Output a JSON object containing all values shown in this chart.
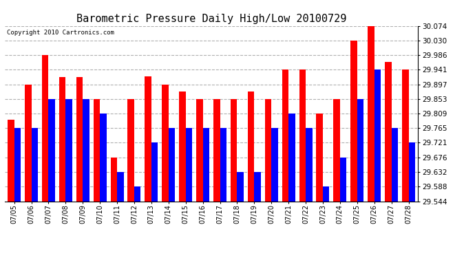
{
  "title": "Barometric Pressure Daily High/Low 20100729",
  "copyright": "Copyright 2010 Cartronics.com",
  "dates": [
    "07/05",
    "07/06",
    "07/07",
    "07/08",
    "07/09",
    "07/10",
    "07/11",
    "07/12",
    "07/13",
    "07/14",
    "07/15",
    "07/16",
    "07/17",
    "07/18",
    "07/19",
    "07/20",
    "07/21",
    "07/22",
    "07/23",
    "07/24",
    "07/25",
    "07/26",
    "07/27",
    "07/28"
  ],
  "highs": [
    29.79,
    29.897,
    29.986,
    29.919,
    29.919,
    29.853,
    29.676,
    29.853,
    29.921,
    29.897,
    29.875,
    29.853,
    29.853,
    29.853,
    29.875,
    29.853,
    29.941,
    29.941,
    29.809,
    29.853,
    30.03,
    30.074,
    29.964,
    29.941
  ],
  "lows": [
    29.765,
    29.765,
    29.853,
    29.853,
    29.853,
    29.809,
    29.632,
    29.588,
    29.721,
    29.765,
    29.765,
    29.765,
    29.765,
    29.632,
    29.632,
    29.765,
    29.809,
    29.765,
    29.588,
    29.676,
    29.853,
    29.941,
    29.765,
    29.721
  ],
  "ymin": 29.544,
  "ymax": 30.074,
  "yticks": [
    29.544,
    29.588,
    29.632,
    29.676,
    29.721,
    29.765,
    29.809,
    29.853,
    29.897,
    29.941,
    29.986,
    30.03,
    30.074
  ],
  "high_color": "#ff0000",
  "low_color": "#0000ff",
  "bg_color": "#ffffff",
  "grid_color": "#b0b0b0",
  "title_fontsize": 11,
  "bar_width": 0.38
}
